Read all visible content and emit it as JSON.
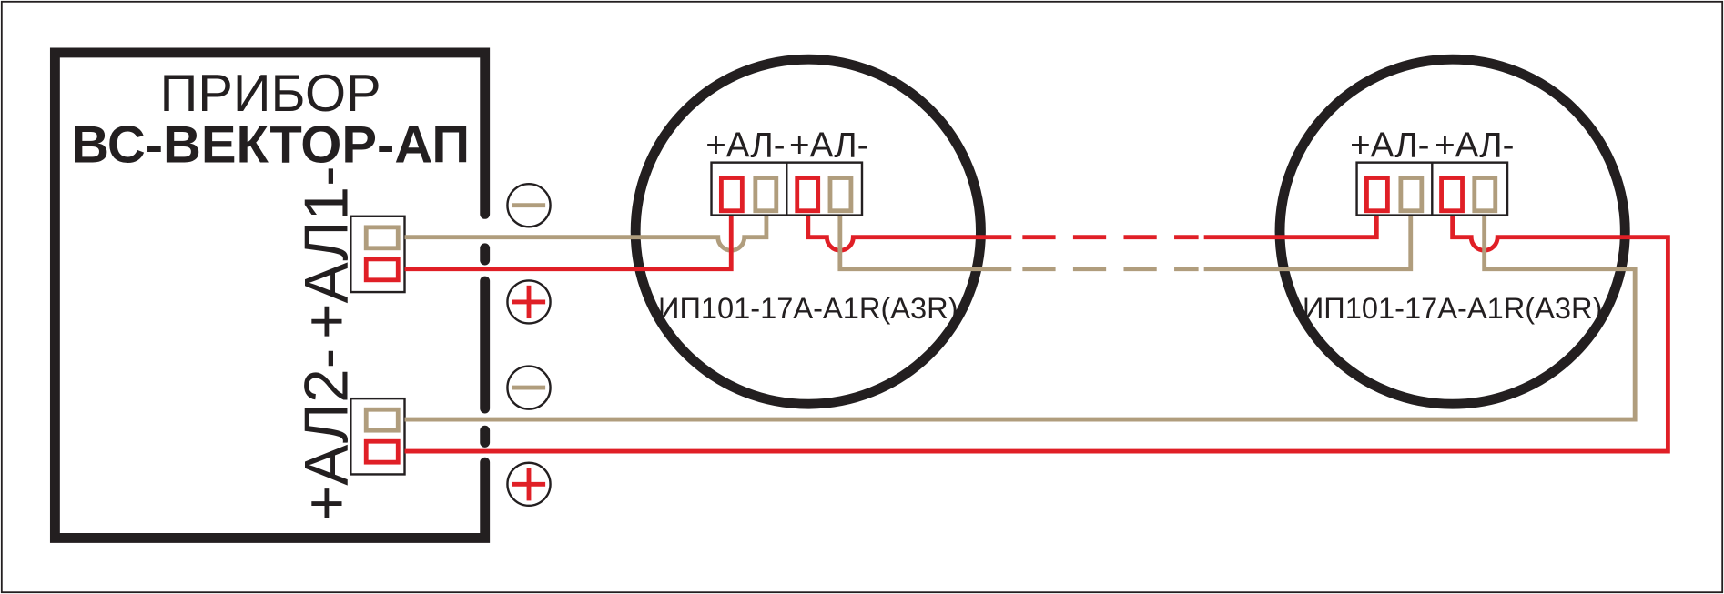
{
  "device": {
    "title": "ПРИБОР",
    "model": "ВС-ВЕКТОР-АП",
    "loop1_label": "+АЛ1-",
    "loop2_label": "+АЛ2-"
  },
  "polarity": {
    "minus": "minus-sign-icon",
    "plus": "plus-sign-icon"
  },
  "detectors": [
    {
      "terminal_labels": [
        "+АЛ-",
        "+АЛ-"
      ],
      "model": "ИП101-17А-A1R(A3R)"
    },
    {
      "terminal_labels": [
        "+АЛ-",
        "+АЛ-"
      ],
      "model": "ИП101-17А-A1R(A3R)"
    }
  ],
  "colors": {
    "positive_wire": "#e01f26",
    "negative_wire": "#b09d7d",
    "outline": "#231f20",
    "background": "#ffffff"
  }
}
